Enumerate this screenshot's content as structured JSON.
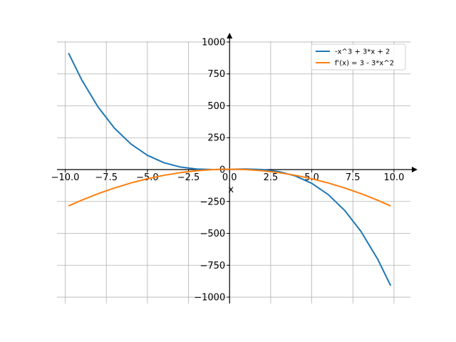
{
  "chart_data": {
    "type": "line",
    "title": "",
    "xlabel": "x",
    "ylabel": "",
    "xlim": [
      -10.5,
      11
    ],
    "ylim": [
      -1050,
      1050
    ],
    "grid": true,
    "legend_position": "top-right",
    "x_ticks": [
      {
        "value": -10.0,
        "label": "−10.0"
      },
      {
        "value": -7.5,
        "label": "−7.5"
      },
      {
        "value": -5.0,
        "label": "−5.0"
      },
      {
        "value": -2.5,
        "label": "−2.5"
      },
      {
        "value": 0.0,
        "label": "0.0"
      },
      {
        "value": 2.5,
        "label": "2.5"
      },
      {
        "value": 5.0,
        "label": "5.0"
      },
      {
        "value": 7.5,
        "label": "7.5"
      },
      {
        "value": 10.0,
        "label": "10.0"
      }
    ],
    "y_ticks": [
      {
        "value": 1000,
        "label": "1000"
      },
      {
        "value": 750,
        "label": "750"
      },
      {
        "value": 500,
        "label": "500"
      },
      {
        "value": 250,
        "label": "250"
      },
      {
        "value": 0,
        "label": "0"
      },
      {
        "value": -250,
        "label": "−250"
      },
      {
        "value": -500,
        "label": "−500"
      },
      {
        "value": -750,
        "label": "−750"
      },
      {
        "value": -1000,
        "label": "−1000"
      }
    ],
    "series": [
      {
        "name": "-x^3 + 3*x + 2",
        "color": "#1f77b4",
        "x": [
          -9.8,
          -9.0,
          -8.0,
          -7.0,
          -6.0,
          -5.0,
          -4.0,
          -3.0,
          -2.0,
          -1.0,
          0.0,
          1.0,
          2.0,
          3.0,
          4.0,
          5.0,
          6.0,
          7.0,
          8.0,
          9.0,
          9.8
        ],
        "y": [
          913.8,
          704,
          490,
          324,
          200,
          112,
          54,
          20,
          4,
          0,
          2,
          4,
          0,
          -16,
          -50,
          -108,
          -196,
          -320,
          -486,
          -700,
          -909.8
        ]
      },
      {
        "name": "f'(x) = 3 - 3*x^2",
        "color": "#ff7f0e",
        "x": [
          -9.8,
          -9.0,
          -8.0,
          -7.0,
          -6.0,
          -5.0,
          -4.0,
          -3.0,
          -2.0,
          -1.0,
          0.0,
          1.0,
          2.0,
          3.0,
          4.0,
          5.0,
          6.0,
          7.0,
          8.0,
          9.0,
          9.8
        ],
        "y": [
          -285.1,
          -240,
          -189,
          -144,
          -105,
          -72,
          -45,
          -24,
          -9,
          0,
          3,
          0,
          -9,
          -24,
          -45,
          -72,
          -105,
          -144,
          -189,
          -240,
          -285.1
        ]
      }
    ]
  }
}
